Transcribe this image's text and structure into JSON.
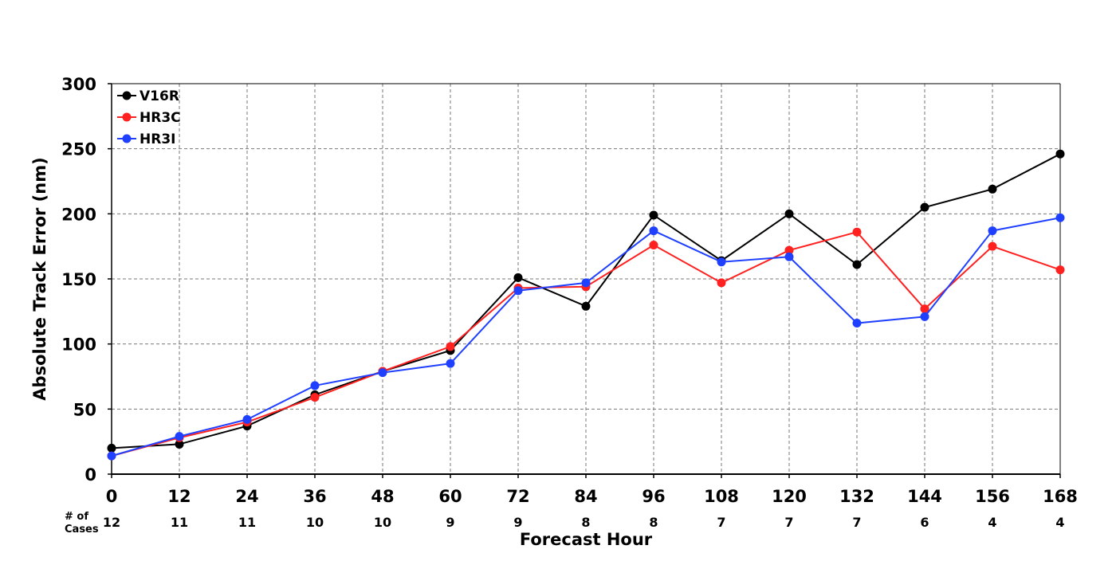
{
  "chart_data": {
    "type": "line",
    "title": "",
    "xlabel": "Forecast Hour",
    "ylabel": "Absolute Track Error (nm)",
    "xlim": [
      0,
      168
    ],
    "ylim": [
      0,
      300
    ],
    "x": [
      0,
      12,
      24,
      36,
      48,
      60,
      72,
      84,
      96,
      108,
      120,
      132,
      144,
      156,
      168
    ],
    "x_tick_labels": [
      "0",
      "12",
      "24",
      "36",
      "48",
      "60",
      "72",
      "84",
      "96",
      "108",
      "120",
      "132",
      "144",
      "156",
      "168"
    ],
    "y_ticks": [
      0,
      50,
      100,
      150,
      200,
      250,
      300
    ],
    "y_tick_labels": [
      "0",
      "50",
      "100",
      "150",
      "200",
      "250",
      "300"
    ],
    "grid": true,
    "legend_position": "top-left",
    "cases_header": [
      "# of",
      "Cases"
    ],
    "cases": [
      "12",
      "11",
      "11",
      "10",
      "10",
      "9",
      "9",
      "8",
      "8",
      "7",
      "7",
      "7",
      "6",
      "4",
      "4"
    ],
    "series": [
      {
        "name": "V16R",
        "color": "#000000",
        "values": [
          20,
          23,
          37,
          61,
          79,
          95,
          151,
          129,
          199,
          164,
          200,
          161,
          205,
          219,
          246
        ]
      },
      {
        "name": "HR3C",
        "color": "#ff2020",
        "values": [
          14,
          28,
          40,
          59,
          79,
          98,
          143,
          144,
          176,
          147,
          172,
          186,
          127,
          175,
          157
        ]
      },
      {
        "name": "HR3I",
        "color": "#2040ff",
        "values": [
          14,
          29,
          42,
          68,
          78,
          85,
          141,
          147,
          187,
          163,
          167,
          116,
          121,
          187,
          197
        ]
      }
    ]
  }
}
